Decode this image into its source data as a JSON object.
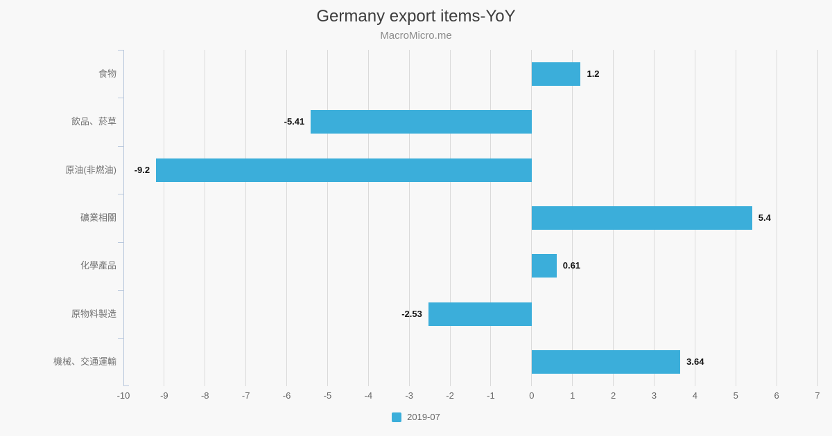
{
  "header": {
    "title": "Germany export items-YoY",
    "subtitle": "MacroMicro.me"
  },
  "legend": {
    "items": [
      {
        "label": "2019-07",
        "color": "#3baeda"
      }
    ]
  },
  "colors": {
    "background": "#f8f8f8",
    "bar": "#3baeda",
    "grid": "#dadada",
    "axis": "#b9c8dd",
    "title": "#3d3d3d",
    "subtitle": "#8b8b8b",
    "category_label": "#737373",
    "tick_label": "#666666",
    "value_label": "#141414"
  },
  "chart_data": {
    "type": "bar",
    "orientation": "horizontal",
    "title": "Germany export items-YoY",
    "subtitle": "MacroMicro.me",
    "xlabel": "",
    "ylabel": "",
    "categories": [
      "食物",
      "飲品、菸草",
      "原油(非燃油)",
      "礦業相關",
      "化學產品",
      "原物料製造",
      "機械、交通運輸"
    ],
    "series": [
      {
        "name": "2019-07",
        "color": "#3baeda",
        "values": [
          1.2,
          -5.41,
          -9.2,
          5.4,
          0.61,
          -2.53,
          3.64
        ]
      }
    ],
    "value_labels": [
      "1.2",
      "-5.41",
      "-9.2",
      "5.4",
      "0.61",
      "-2.53",
      "3.64"
    ],
    "xlim": [
      -10,
      7
    ],
    "x_ticks": [
      -10,
      -9,
      -8,
      -7,
      -6,
      -5,
      -4,
      -3,
      -2,
      -1,
      0,
      1,
      2,
      3,
      4,
      5,
      6,
      7
    ],
    "grid": true,
    "legend_position": "bottom"
  }
}
